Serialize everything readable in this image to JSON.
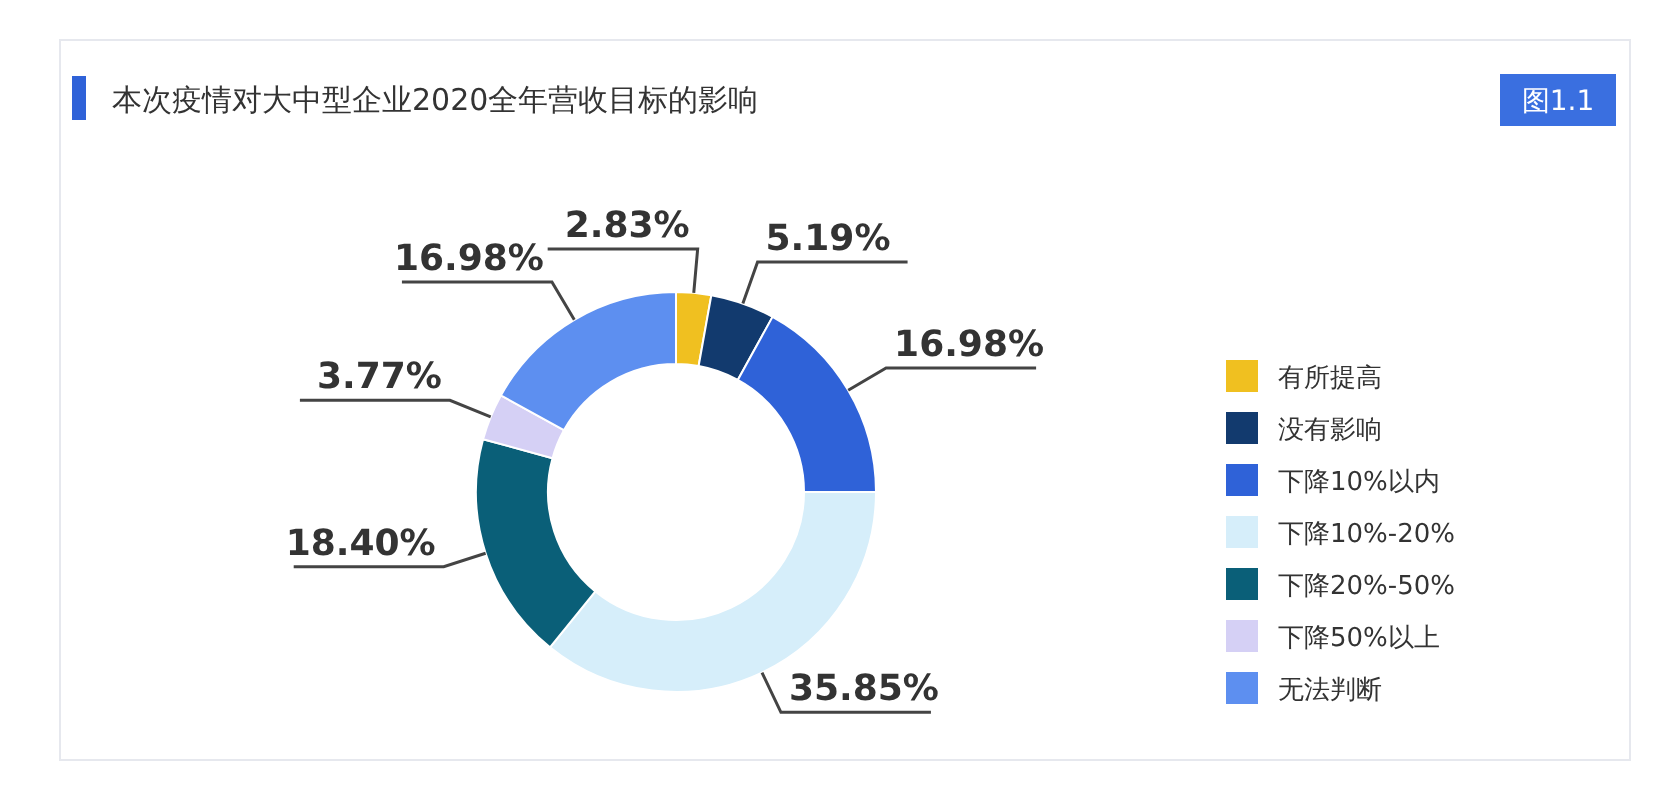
{
  "chart_data": {
    "type": "donut",
    "title": "本次疫情对大中型企业2020全年营收目标的影响",
    "annotations": [
      "图1.1"
    ],
    "categories": [
      "有所提高",
      "没有影响",
      "下降10%以内",
      "下降10%-20%",
      "下降20%-50%",
      "下降50%以上",
      "无法判断"
    ],
    "values": [
      2.83,
      5.19,
      16.98,
      35.85,
      18.4,
      3.77,
      16.98
    ],
    "colors": [
      "#f0c020",
      "#123a6e",
      "#2f62d8",
      "#d6eefa",
      "#0a5f78",
      "#d5d0f5",
      "#5d8ff0"
    ],
    "value_labels": [
      "2.83%",
      "5.19%",
      "16.98%",
      "35.85%",
      "18.40%",
      "3.77%",
      "16.98%"
    ],
    "legend": "right"
  }
}
